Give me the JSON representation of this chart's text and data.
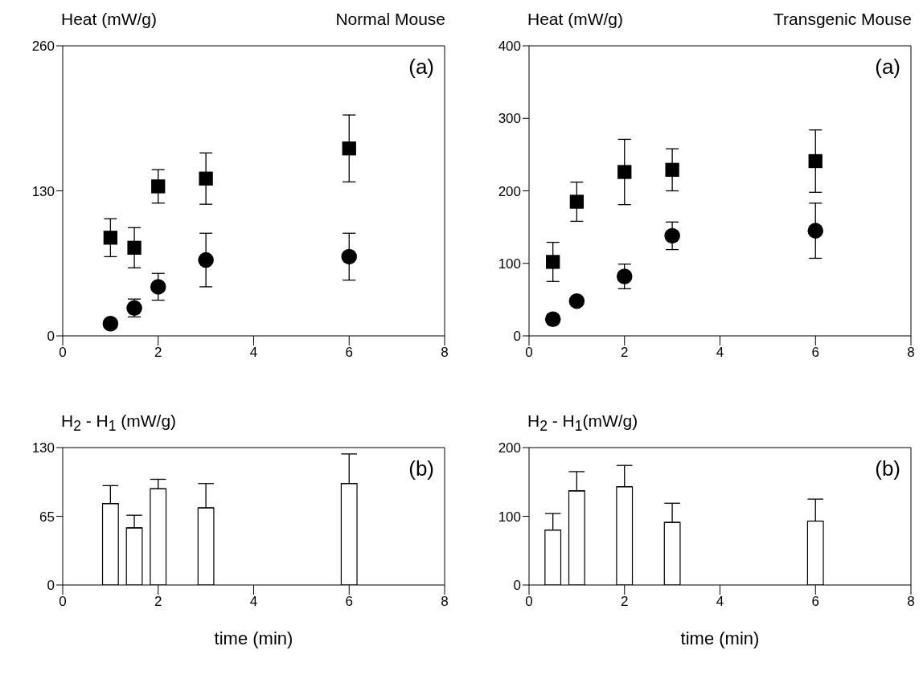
{
  "chart_data": [
    {
      "type": "scatter",
      "title": "Normal Mouse",
      "ylabel": "Heat (mW/g)",
      "annotations": [
        "(a)"
      ],
      "xlim": [
        0,
        8
      ],
      "xticks": [
        0,
        2,
        4,
        6,
        8
      ],
      "ylim": [
        0,
        260
      ],
      "yticks": [
        0,
        130,
        260
      ],
      "series": [
        {
          "color": "#000000",
          "marker": "square",
          "x": [
            1,
            1.5,
            2,
            3,
            6
          ],
          "values": [
            88,
            79,
            134,
            141,
            168
          ],
          "errors": [
            17,
            18,
            15,
            23,
            30
          ]
        },
        {
          "color": "#000000",
          "marker": "circle",
          "x": [
            1,
            1.5,
            2,
            3,
            6
          ],
          "values": [
            11,
            25,
            44,
            68,
            71
          ],
          "errors": [
            null,
            8,
            12,
            24,
            21
          ]
        }
      ]
    },
    {
      "type": "scatter",
      "title": "Transgenic Mouse",
      "ylabel": "Heat (mW/g)",
      "annotations": [
        "(a)"
      ],
      "xlim": [
        0,
        8
      ],
      "xticks": [
        0,
        2,
        4,
        6,
        8
      ],
      "ylim": [
        0,
        400
      ],
      "yticks": [
        0,
        100,
        200,
        300,
        400
      ],
      "series": [
        {
          "color": "#000000",
          "marker": "square",
          "x": [
            0.5,
            1,
            2,
            3,
            6
          ],
          "values": [
            102,
            185,
            226,
            229,
            241
          ],
          "errors": [
            27,
            27,
            45,
            29,
            43
          ]
        },
        {
          "color": "#000000",
          "marker": "circle",
          "x": [
            0.5,
            1,
            2,
            3,
            6
          ],
          "values": [
            23,
            48,
            82,
            138,
            145
          ],
          "errors": [
            null,
            null,
            17,
            19,
            38
          ]
        }
      ]
    },
    {
      "type": "bar",
      "ylabel": "H$_{2}$ - H$_{1}$ (mW/g)",
      "xlabel": "time (min)",
      "annotations": [
        "(b)"
      ],
      "xlim": [
        0,
        8
      ],
      "xticks": [
        0,
        2,
        4,
        6,
        8
      ],
      "ylim": [
        0,
        130
      ],
      "yticks": [
        0,
        65,
        130
      ],
      "series": [
        {
          "color": "#ffffff",
          "x": [
            1,
            1.5,
            2,
            3,
            6
          ],
          "values": [
            77,
            54,
            91,
            73,
            96
          ],
          "errors": [
            [
              77,
              94
            ],
            [
              54,
              66
            ],
            [
              91,
              100
            ],
            [
              73,
              96
            ],
            [
              96,
              124
            ]
          ]
        }
      ]
    },
    {
      "type": "bar",
      "ylabel": "H$_{2}$ - H$_{1}$(mW/g)",
      "xlabel": "time (min)",
      "annotations": [
        "(b)"
      ],
      "xlim": [
        0,
        8
      ],
      "xticks": [
        0,
        2,
        4,
        6,
        8
      ],
      "ylim": [
        0,
        200
      ],
      "yticks": [
        0,
        100,
        200
      ],
      "series": [
        {
          "color": "#ffffff",
          "x": [
            0.5,
            1,
            2,
            3,
            6
          ],
          "values": [
            80,
            137,
            143,
            91,
            93
          ],
          "errors": [
            [
              80,
              104
            ],
            [
              137,
              165
            ],
            [
              143,
              174
            ],
            [
              91,
              119
            ],
            [
              93,
              125
            ]
          ]
        }
      ]
    }
  ]
}
